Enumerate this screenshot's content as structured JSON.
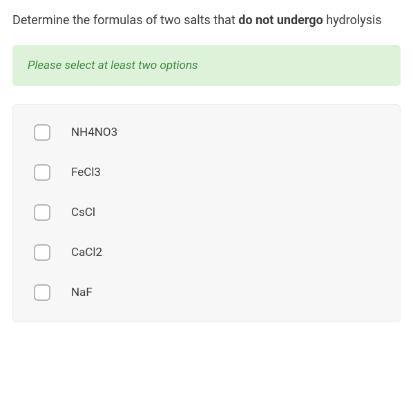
{
  "question": {
    "prefix": "Determine the formulas of two salts that ",
    "bold": "do not undergo",
    "suffix": " hydrolysis"
  },
  "hint": {
    "text": "Please select at least two options",
    "background_color": "#def2d9",
    "text_color": "#3a8a3e",
    "fontsize": 17,
    "font_style": "italic"
  },
  "options_panel": {
    "background_color": "#f7f7f7",
    "border_color": "#ececec"
  },
  "checkbox_style": {
    "size": 24,
    "border_color": "#b8b8b8",
    "border_radius": 6,
    "background": "#ffffff"
  },
  "options": [
    {
      "label": "NH4NO3",
      "checked": false
    },
    {
      "label": "FeCl3",
      "checked": false
    },
    {
      "label": "CsCl",
      "checked": false
    },
    {
      "label": "CaCl2",
      "checked": false
    },
    {
      "label": "NaF",
      "checked": false
    }
  ],
  "typography": {
    "question_fontsize": 18,
    "option_fontsize": 17,
    "text_color": "#3a3a3a"
  }
}
